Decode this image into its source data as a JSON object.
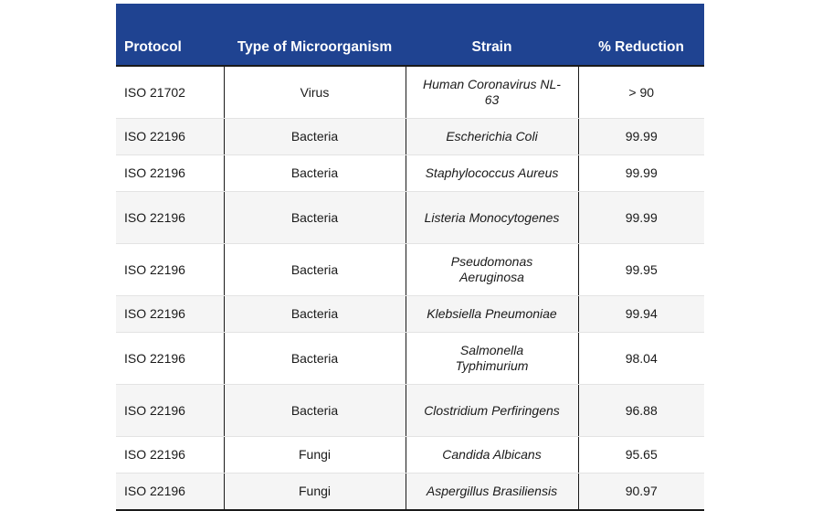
{
  "chart_data": {
    "type": "table",
    "title": "",
    "columns": [
      "Protocol",
      "Type of Microorganism",
      "Strain",
      "% Reduction"
    ],
    "rows": [
      {
        "protocol": "ISO 21702",
        "type": "Virus",
        "strain": "Human Coronavirus NL-63",
        "reduction": "> 90"
      },
      {
        "protocol": "ISO 22196",
        "type": "Bacteria",
        "strain": "Escherichia Coli",
        "reduction": "99.99"
      },
      {
        "protocol": "ISO 22196",
        "type": "Bacteria",
        "strain": "Staphylococcus Aureus",
        "reduction": "99.99"
      },
      {
        "protocol": "ISO 22196",
        "type": "Bacteria",
        "strain": "Listeria Monocytogenes",
        "reduction": "99.99"
      },
      {
        "protocol": "ISO 22196",
        "type": "Bacteria",
        "strain": "Pseudomonas Aeruginosa",
        "reduction": "99.95"
      },
      {
        "protocol": "ISO 22196",
        "type": "Bacteria",
        "strain": "Klebsiella Pneumoniae",
        "reduction": "99.94"
      },
      {
        "protocol": "ISO 22196",
        "type": "Bacteria",
        "strain": "Salmonella Typhimurium",
        "reduction": "98.04"
      },
      {
        "protocol": "ISO 22196",
        "type": "Bacteria",
        "strain": "Clostridium Perfiringens",
        "reduction": "96.88"
      },
      {
        "protocol": "ISO 22196",
        "type": "Fungi",
        "strain": "Candida Albicans",
        "reduction": "95.65"
      },
      {
        "protocol": "ISO 22196",
        "type": "Fungi",
        "strain": "Aspergillus Brasiliensis",
        "reduction": "90.97"
      }
    ]
  },
  "colors": {
    "header_bg": "#1f4391",
    "header_text": "#ffffff",
    "row_alt_bg": "#f5f5f5"
  }
}
